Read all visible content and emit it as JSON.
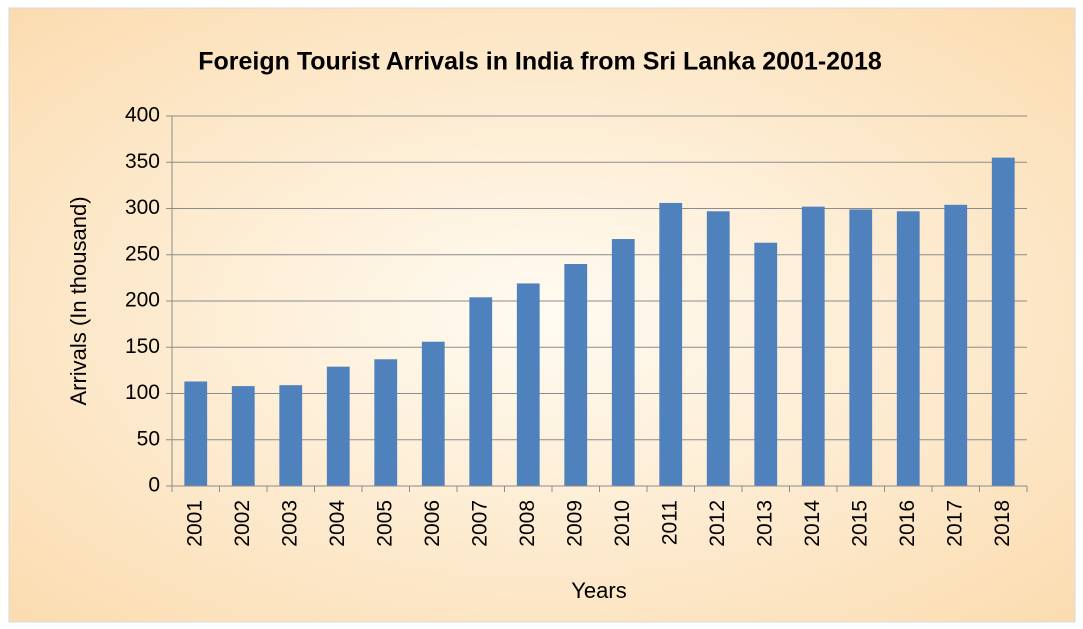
{
  "chart_data": {
    "type": "bar",
    "title": "Foreign Tourist Arrivals in India from Sri Lanka 2001-2018",
    "x_label": "Years",
    "y_label": "Arrivals (In thousand)",
    "categories": [
      "2001",
      "2002",
      "2003",
      "2004",
      "2005",
      "2006",
      "2007",
      "2008",
      "2009",
      "2010",
      "2011",
      "2012",
      "2013",
      "2014",
      "2015",
      "2016",
      "2017",
      "2018"
    ],
    "values": [
      113,
      108,
      109,
      129,
      137,
      156,
      204,
      219,
      240,
      267,
      306,
      297,
      263,
      302,
      299,
      297,
      304,
      355
    ],
    "color": "#4f81bd",
    "ylim": [
      0,
      400
    ],
    "yticks": [
      0,
      50,
      100,
      150,
      200,
      250,
      300,
      350,
      400
    ],
    "grid": true
  }
}
